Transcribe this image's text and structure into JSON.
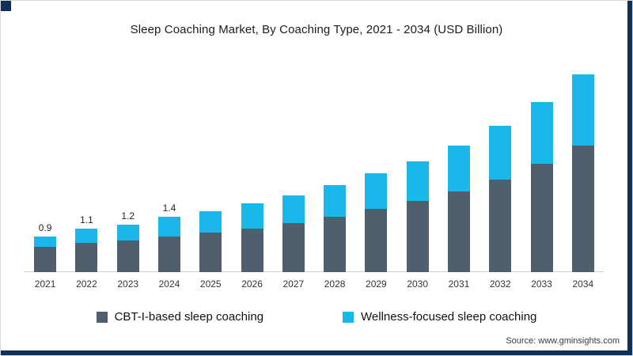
{
  "colors": {
    "accent_navy": "#0e3257",
    "cbt_series": "#4f5f6d",
    "wellness_series": "#1ab7ea",
    "baseline": "#cfcfcf"
  },
  "source": {
    "label": "Source: www.gminsights.com"
  },
  "chart_data": {
    "type": "bar",
    "stacked": true,
    "title": "Sleep Coaching Market, By Coaching Type, 2021 - 2034 (USD Billion)",
    "xlabel": "",
    "ylabel": "",
    "ylim": [
      0,
      5.2
    ],
    "grid": false,
    "legend_position": "bottom",
    "categories": [
      "2021",
      "2022",
      "2023",
      "2024",
      "2025",
      "2026",
      "2027",
      "2028",
      "2029",
      "2030",
      "2031",
      "2032",
      "2033",
      "2034"
    ],
    "series": [
      {
        "name": "CBT-I-based sleep coaching",
        "color": "#4f5f6d",
        "values": [
          0.65,
          0.75,
          0.8,
          0.9,
          1.0,
          1.1,
          1.25,
          1.4,
          1.6,
          1.8,
          2.05,
          2.35,
          2.75,
          3.2
        ]
      },
      {
        "name": "Wellness-focused sleep coaching",
        "color": "#1ab7ea",
        "values": [
          0.25,
          0.35,
          0.4,
          0.5,
          0.55,
          0.65,
          0.7,
          0.8,
          0.9,
          1.0,
          1.15,
          1.35,
          1.55,
          1.8
        ]
      }
    ],
    "totals": [
      0.9,
      1.1,
      1.2,
      1.4,
      1.55,
      1.75,
      1.95,
      2.2,
      2.5,
      2.8,
      3.2,
      3.7,
      4.3,
      5.0
    ],
    "total_labels": [
      "0.9",
      "1.1",
      "1.2",
      "1.4",
      "",
      "",
      "",
      "",
      "",
      "",
      "",
      "",
      "",
      ""
    ]
  }
}
